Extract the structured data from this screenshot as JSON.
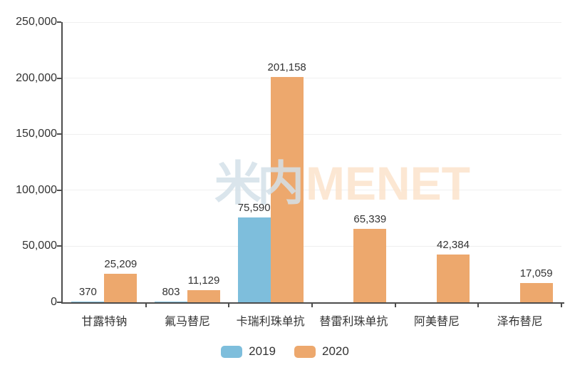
{
  "chart_data": {
    "type": "bar",
    "categories": [
      "甘露特钠",
      "氟马替尼",
      "卡瑞利珠单抗",
      "替雷利珠单抗",
      "阿美替尼",
      "泽布替尼"
    ],
    "series": [
      {
        "name": "2019",
        "color": "#7EBEDC",
        "values": [
          370,
          803,
          75590,
          null,
          null,
          null
        ]
      },
      {
        "name": "2020",
        "color": "#EDA86D",
        "values": [
          25209,
          11129,
          201158,
          65339,
          42384,
          17059
        ]
      }
    ],
    "data_labels": [
      [
        "370",
        "803",
        "75,590",
        null,
        null,
        null
      ],
      [
        "25,209",
        "11,129",
        "201,158",
        "65,339",
        "42,384",
        "17,059"
      ]
    ],
    "title": "",
    "xlabel": "",
    "ylabel": "",
    "ylim": [
      0,
      250000
    ],
    "yticks": [
      "0",
      "50,000",
      "100,000",
      "150,000",
      "200,000",
      "250,000"
    ],
    "grid": true,
    "legend_position": "bottom"
  },
  "legend": {
    "items": [
      {
        "label": "2019",
        "color": "#7EBEDC"
      },
      {
        "label": "2020",
        "color": "#EDA86D"
      }
    ]
  },
  "watermark": {
    "part1": "米内",
    "part2": "MENET"
  },
  "colors": {
    "axis": "#4d4d4d",
    "gridline": "#efefef",
    "text": "#333333",
    "background": "#ffffff"
  }
}
